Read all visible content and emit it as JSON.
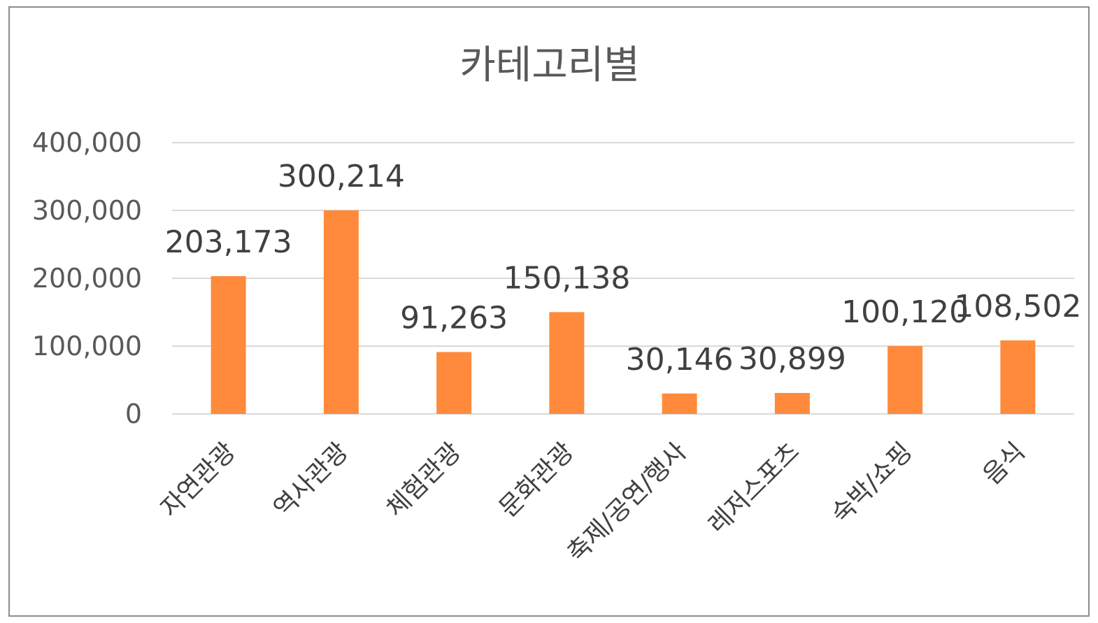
{
  "chart_data": {
    "type": "bar",
    "title": "카테고리별",
    "categories": [
      "자연관광",
      "역사관광",
      "체험관광",
      "문화관광",
      "축제/공연/행사",
      "레저스포츠",
      "숙박/쇼핑",
      "음식"
    ],
    "values": [
      203173,
      300214,
      91263,
      150138,
      30146,
      30899,
      100120,
      108502
    ],
    "data_labels": [
      "203,173",
      "300,214",
      "91,263",
      "150,138",
      "30,146",
      "30,899",
      "100,120",
      "108,502"
    ],
    "ylim": [
      0,
      400000
    ],
    "yticks": [
      0,
      100000,
      200000,
      300000,
      400000
    ],
    "ytick_labels": [
      "0",
      "100,000",
      "200,000",
      "300,000",
      "400,000"
    ],
    "grid": true,
    "legend": "none",
    "bar_color": "#FF8A3C"
  }
}
